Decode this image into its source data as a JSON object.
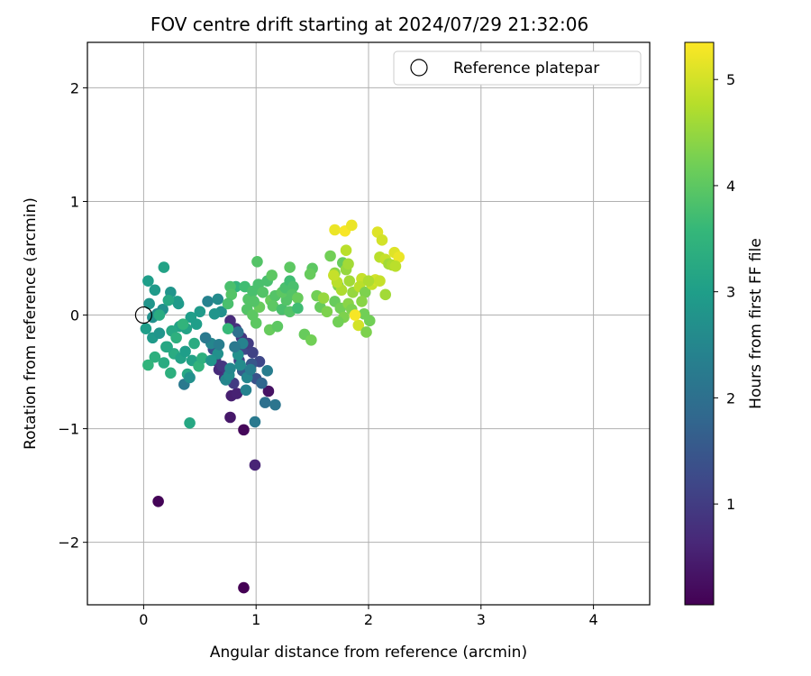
{
  "chart_data": {
    "type": "scatter",
    "title": "FOV centre drift starting at 2024/07/29 21:32:06",
    "xlabel": "Angular distance from reference (arcmin)",
    "ylabel": "Rotation from reference (arcmin)",
    "xlim": [
      -0.5,
      4.5
    ],
    "ylim": [
      -2.55,
      2.4
    ],
    "x_ticks": [
      0,
      1,
      2,
      3,
      4
    ],
    "y_ticks": [
      -2,
      -1,
      0,
      1,
      2
    ],
    "grid": true,
    "legend": {
      "position": "top-right",
      "label": "Reference platepar"
    },
    "reference_point": {
      "x": 0,
      "y": 0
    },
    "colorbar": {
      "label": "Hours from first FF file",
      "min": 0.05,
      "max": 5.35,
      "ticks": [
        1,
        2,
        3,
        4,
        5
      ],
      "colormap": "viridis",
      "stops": [
        "#440154",
        "#482878",
        "#3e4989",
        "#31688e",
        "#26828e",
        "#1f9e89",
        "#35b779",
        "#6ece58",
        "#b5de2b",
        "#fde725"
      ]
    },
    "points": [
      {
        "x": 0.89,
        "y": -2.4,
        "c": 0.05
      },
      {
        "x": 0.13,
        "y": -1.64,
        "c": 0.1
      },
      {
        "x": 0.89,
        "y": -1.01,
        "c": 0.15
      },
      {
        "x": 0.99,
        "y": -1.32,
        "c": 0.6
      },
      {
        "x": 0.77,
        "y": -0.9,
        "c": 0.4
      },
      {
        "x": 1.11,
        "y": -0.67,
        "c": 0.3
      },
      {
        "x": 0.78,
        "y": -0.71,
        "c": 0.5
      },
      {
        "x": 0.83,
        "y": -0.69,
        "c": 0.55
      },
      {
        "x": 0.67,
        "y": -0.48,
        "c": 0.7
      },
      {
        "x": 0.72,
        "y": -0.55,
        "c": 0.8
      },
      {
        "x": 0.64,
        "y": -0.4,
        "c": 0.85
      },
      {
        "x": 0.7,
        "y": -0.45,
        "c": 0.9
      },
      {
        "x": 0.75,
        "y": -0.52,
        "c": 0.95
      },
      {
        "x": 0.8,
        "y": -0.6,
        "c": 1.0
      },
      {
        "x": 0.85,
        "y": -0.4,
        "c": 1.1
      },
      {
        "x": 0.9,
        "y": -0.3,
        "c": 1.2
      },
      {
        "x": 0.62,
        "y": -0.3,
        "c": 1.3
      },
      {
        "x": 0.77,
        "y": -0.05,
        "c": 0.7
      },
      {
        "x": 0.82,
        "y": -0.12,
        "c": 0.8
      },
      {
        "x": 0.87,
        "y": -0.2,
        "c": 0.9
      },
      {
        "x": 0.93,
        "y": -0.25,
        "c": 1.0
      },
      {
        "x": 0.97,
        "y": -0.33,
        "c": 1.1
      },
      {
        "x": 1.03,
        "y": -0.41,
        "c": 1.2
      },
      {
        "x": 1.0,
        "y": -0.56,
        "c": 1.4
      },
      {
        "x": 0.96,
        "y": -0.43,
        "c": 1.5
      },
      {
        "x": 0.88,
        "y": -0.49,
        "c": 1.6
      },
      {
        "x": 1.05,
        "y": -0.6,
        "c": 1.8
      },
      {
        "x": 1.08,
        "y": -0.77,
        "c": 2.0
      },
      {
        "x": 1.17,
        "y": -0.79,
        "c": 2.1
      },
      {
        "x": 0.99,
        "y": -0.94,
        "c": 2.2
      },
      {
        "x": 1.1,
        "y": -0.49,
        "c": 2.3
      },
      {
        "x": 0.91,
        "y": -0.66,
        "c": 2.4
      },
      {
        "x": 0.84,
        "y": -0.15,
        "c": 2.0
      },
      {
        "x": 0.73,
        "y": -0.57,
        "c": 2.5
      },
      {
        "x": 0.76,
        "y": -0.53,
        "c": 2.6
      },
      {
        "x": 0.66,
        "y": -0.34,
        "c": 2.7
      },
      {
        "x": 0.6,
        "y": -0.25,
        "c": 2.5
      },
      {
        "x": 0.55,
        "y": -0.2,
        "c": 2.2
      },
      {
        "x": 0.57,
        "y": 0.12,
        "c": 2.4
      },
      {
        "x": 0.66,
        "y": 0.14,
        "c": 2.6
      },
      {
        "x": 0.69,
        "y": 0.03,
        "c": 2.7
      },
      {
        "x": 0.63,
        "y": 0.01,
        "c": 2.8
      },
      {
        "x": 0.5,
        "y": 0.03,
        "c": 2.9
      },
      {
        "x": 0.42,
        "y": -0.02,
        "c": 3.0
      },
      {
        "x": 0.47,
        "y": -0.08,
        "c": 3.0
      },
      {
        "x": 0.38,
        "y": -0.12,
        "c": 3.1
      },
      {
        "x": 0.32,
        "y": -0.1,
        "c": 3.1
      },
      {
        "x": 0.25,
        "y": -0.14,
        "c": 3.2
      },
      {
        "x": 0.3,
        "y": 0.12,
        "c": 3.0
      },
      {
        "x": 0.31,
        "y": 0.1,
        "c": 2.9
      },
      {
        "x": 0.24,
        "y": 0.2,
        "c": 2.8
      },
      {
        "x": 0.17,
        "y": 0.05,
        "c": 2.7
      },
      {
        "x": 0.12,
        "y": 0.01,
        "c": 2.6
      },
      {
        "x": 0.08,
        "y": -0.02,
        "c": 2.7
      },
      {
        "x": 0.05,
        "y": 0.1,
        "c": 2.8
      },
      {
        "x": 0.1,
        "y": 0.22,
        "c": 2.9
      },
      {
        "x": 0.04,
        "y": 0.3,
        "c": 3.0
      },
      {
        "x": 0.18,
        "y": 0.42,
        "c": 3.1
      },
      {
        "x": 0.22,
        "y": 0.13,
        "c": 3.2
      },
      {
        "x": 0.14,
        "y": 0.0,
        "c": 3.3
      },
      {
        "x": 0.02,
        "y": -0.12,
        "c": 3.0
      },
      {
        "x": 0.08,
        "y": -0.2,
        "c": 2.9
      },
      {
        "x": 0.14,
        "y": -0.16,
        "c": 2.8
      },
      {
        "x": 0.2,
        "y": -0.28,
        "c": 3.2
      },
      {
        "x": 0.27,
        "y": -0.34,
        "c": 3.3
      },
      {
        "x": 0.33,
        "y": -0.38,
        "c": 3.1
      },
      {
        "x": 0.37,
        "y": -0.32,
        "c": 3.0
      },
      {
        "x": 0.18,
        "y": -0.42,
        "c": 3.3
      },
      {
        "x": 0.1,
        "y": -0.37,
        "c": 3.4
      },
      {
        "x": 0.04,
        "y": -0.44,
        "c": 3.5
      },
      {
        "x": 0.24,
        "y": -0.51,
        "c": 3.4
      },
      {
        "x": 0.39,
        "y": -0.52,
        "c": 3.2
      },
      {
        "x": 0.43,
        "y": -0.4,
        "c": 3.1
      },
      {
        "x": 0.36,
        "y": -0.61,
        "c": 2.2
      },
      {
        "x": 0.41,
        "y": -0.55,
        "c": 2.7
      },
      {
        "x": 0.49,
        "y": -0.45,
        "c": 3.5
      },
      {
        "x": 0.52,
        "y": -0.38,
        "c": 3.4
      },
      {
        "x": 0.45,
        "y": -0.25,
        "c": 3.3
      },
      {
        "x": 0.41,
        "y": -0.95,
        "c": 3.2
      },
      {
        "x": 0.21,
        "y": -0.28,
        "c": 3.2
      },
      {
        "x": 0.29,
        "y": -0.2,
        "c": 3.4
      },
      {
        "x": 0.35,
        "y": -0.08,
        "c": 3.5
      },
      {
        "x": 0.6,
        "y": -0.4,
        "c": 2.8
      },
      {
        "x": 0.67,
        "y": -0.26,
        "c": 2.3
      },
      {
        "x": 0.77,
        "y": -0.47,
        "c": 2.5
      },
      {
        "x": 0.86,
        "y": -0.44,
        "c": 2.6
      },
      {
        "x": 0.92,
        "y": -0.55,
        "c": 2.5
      },
      {
        "x": 0.84,
        "y": -0.35,
        "c": 2.7
      },
      {
        "x": 0.95,
        "y": -0.48,
        "c": 2.3
      },
      {
        "x": 0.88,
        "y": -0.25,
        "c": 2.4
      },
      {
        "x": 0.81,
        "y": -0.28,
        "c": 2.2
      },
      {
        "x": 0.75,
        "y": -0.12,
        "c": 3.6
      },
      {
        "x": 0.82,
        "y": 0.25,
        "c": 3.5
      },
      {
        "x": 0.9,
        "y": 0.25,
        "c": 3.7
      },
      {
        "x": 0.77,
        "y": 0.25,
        "c": 3.8
      },
      {
        "x": 0.78,
        "y": 0.18,
        "c": 3.9
      },
      {
        "x": 0.75,
        "y": 0.1,
        "c": 3.8
      },
      {
        "x": 0.93,
        "y": 0.14,
        "c": 3.9
      },
      {
        "x": 0.97,
        "y": 0.21,
        "c": 3.8
      },
      {
        "x": 0.92,
        "y": 0.05,
        "c": 3.9
      },
      {
        "x": 0.97,
        "y": 0.0,
        "c": 4.0
      },
      {
        "x": 1.0,
        "y": -0.07,
        "c": 4.0
      },
      {
        "x": 1.03,
        "y": 0.07,
        "c": 4.1
      },
      {
        "x": 0.98,
        "y": 0.12,
        "c": 3.9
      },
      {
        "x": 1.02,
        "y": 0.27,
        "c": 3.8
      },
      {
        "x": 1.06,
        "y": 0.2,
        "c": 3.9
      },
      {
        "x": 1.1,
        "y": 0.3,
        "c": 3.8
      },
      {
        "x": 1.14,
        "y": 0.35,
        "c": 4.0
      },
      {
        "x": 1.01,
        "y": 0.47,
        "c": 3.9
      },
      {
        "x": 1.13,
        "y": 0.13,
        "c": 4.1
      },
      {
        "x": 1.17,
        "y": 0.17,
        "c": 3.9
      },
      {
        "x": 1.15,
        "y": 0.08,
        "c": 4.0
      },
      {
        "x": 1.12,
        "y": -0.13,
        "c": 4.1
      },
      {
        "x": 1.19,
        "y": -0.1,
        "c": 4.0
      },
      {
        "x": 1.23,
        "y": 0.05,
        "c": 3.8
      },
      {
        "x": 1.27,
        "y": 0.13,
        "c": 3.9
      },
      {
        "x": 1.23,
        "y": 0.2,
        "c": 4.0
      },
      {
        "x": 1.26,
        "y": 0.24,
        "c": 3.8
      },
      {
        "x": 1.3,
        "y": 0.3,
        "c": 3.7
      },
      {
        "x": 1.33,
        "y": 0.25,
        "c": 3.8
      },
      {
        "x": 1.32,
        "y": 0.18,
        "c": 3.9
      },
      {
        "x": 1.3,
        "y": 0.42,
        "c": 4.0
      },
      {
        "x": 1.37,
        "y": 0.15,
        "c": 4.1
      },
      {
        "x": 1.3,
        "y": 0.03,
        "c": 3.9
      },
      {
        "x": 1.37,
        "y": 0.06,
        "c": 3.7
      },
      {
        "x": 1.43,
        "y": -0.17,
        "c": 4.1
      },
      {
        "x": 1.49,
        "y": -0.22,
        "c": 4.2
      },
      {
        "x": 1.5,
        "y": 0.41,
        "c": 4.0
      },
      {
        "x": 1.48,
        "y": 0.36,
        "c": 4.1
      },
      {
        "x": 1.54,
        "y": 0.17,
        "c": 4.2
      },
      {
        "x": 1.57,
        "y": 0.07,
        "c": 4.1
      },
      {
        "x": 1.63,
        "y": 0.03,
        "c": 4.3
      },
      {
        "x": 1.66,
        "y": 0.52,
        "c": 4.2
      },
      {
        "x": 1.7,
        "y": 0.37,
        "c": 4.4
      },
      {
        "x": 1.73,
        "y": 0.26,
        "c": 4.3
      },
      {
        "x": 1.7,
        "y": 0.12,
        "c": 4.1
      },
      {
        "x": 1.75,
        "y": 0.06,
        "c": 4.2
      },
      {
        "x": 1.78,
        "y": -0.02,
        "c": 4.3
      },
      {
        "x": 1.82,
        "y": 0.1,
        "c": 4.4
      },
      {
        "x": 1.85,
        "y": 0.05,
        "c": 4.3
      },
      {
        "x": 1.73,
        "y": -0.06,
        "c": 4.2
      },
      {
        "x": 1.77,
        "y": 0.46,
        "c": 4.1
      },
      {
        "x": 1.8,
        "y": 0.4,
        "c": 4.5
      },
      {
        "x": 1.82,
        "y": 0.45,
        "c": 4.6
      },
      {
        "x": 1.86,
        "y": 0.2,
        "c": 4.5
      },
      {
        "x": 1.83,
        "y": 0.3,
        "c": 4.6
      },
      {
        "x": 1.76,
        "y": 0.22,
        "c": 4.7
      },
      {
        "x": 1.72,
        "y": 0.29,
        "c": 4.8
      },
      {
        "x": 1.69,
        "y": 0.35,
        "c": 4.9
      },
      {
        "x": 1.8,
        "y": 0.57,
        "c": 4.8
      },
      {
        "x": 1.7,
        "y": 0.75,
        "c": 5.2
      },
      {
        "x": 1.79,
        "y": 0.74,
        "c": 5.3
      },
      {
        "x": 1.85,
        "y": 0.79,
        "c": 5.2
      },
      {
        "x": 1.94,
        "y": 0.32,
        "c": 4.9
      },
      {
        "x": 1.92,
        "y": 0.25,
        "c": 4.8
      },
      {
        "x": 1.97,
        "y": 0.2,
        "c": 4.3
      },
      {
        "x": 1.94,
        "y": 0.12,
        "c": 4.4
      },
      {
        "x": 1.96,
        "y": 0.01,
        "c": 4.2
      },
      {
        "x": 1.91,
        "y": -0.09,
        "c": 5.0
      },
      {
        "x": 1.98,
        "y": -0.15,
        "c": 4.3
      },
      {
        "x": 2.01,
        "y": -0.05,
        "c": 4.2
      },
      {
        "x": 2.03,
        "y": 0.27,
        "c": 4.9
      },
      {
        "x": 2.06,
        "y": 0.31,
        "c": 5.0
      },
      {
        "x": 2.1,
        "y": 0.3,
        "c": 4.9
      },
      {
        "x": 2.08,
        "y": 0.73,
        "c": 5.1
      },
      {
        "x": 2.12,
        "y": 0.66,
        "c": 5.0
      },
      {
        "x": 2.1,
        "y": 0.51,
        "c": 4.8
      },
      {
        "x": 2.15,
        "y": 0.49,
        "c": 4.9
      },
      {
        "x": 2.18,
        "y": 0.45,
        "c": 4.6
      },
      {
        "x": 2.21,
        "y": 0.44,
        "c": 4.7
      },
      {
        "x": 2.23,
        "y": 0.55,
        "c": 5.1
      },
      {
        "x": 2.27,
        "y": 0.51,
        "c": 5.2
      },
      {
        "x": 2.24,
        "y": 0.43,
        "c": 4.8
      },
      {
        "x": 2.15,
        "y": 0.18,
        "c": 4.6
      },
      {
        "x": 1.88,
        "y": 0.0,
        "c": 5.3
      },
      {
        "x": 2.0,
        "y": 0.3,
        "c": 4.7
      },
      {
        "x": 1.6,
        "y": 0.15,
        "c": 4.5
      }
    ]
  }
}
